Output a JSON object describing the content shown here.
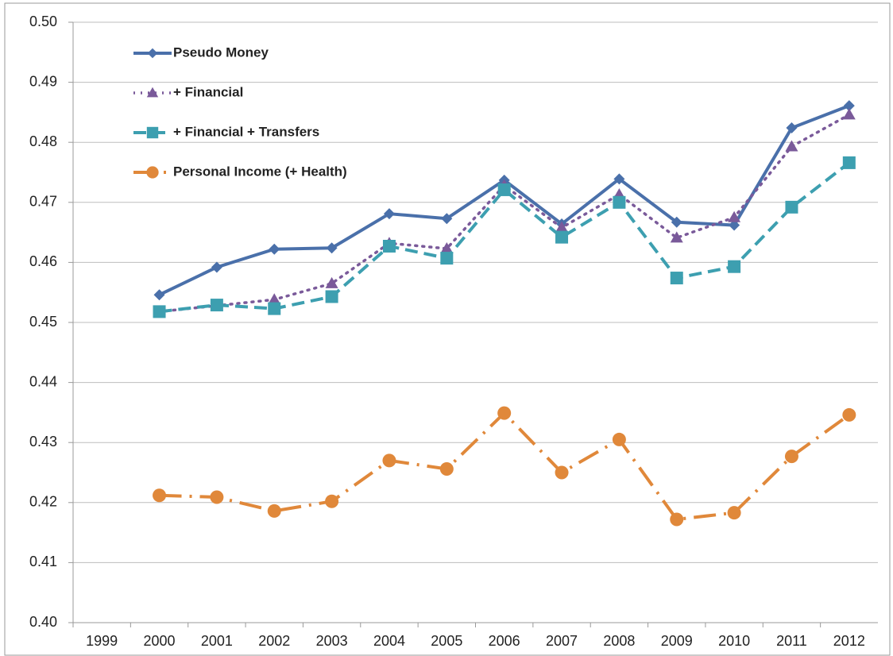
{
  "chart_data": {
    "type": "line",
    "categories": [
      "1999",
      "2000",
      "2001",
      "2002",
      "2003",
      "2004",
      "2005",
      "2006",
      "2007",
      "2008",
      "2009",
      "2010",
      "2011",
      "2012"
    ],
    "ylim": [
      0.4,
      0.5
    ],
    "yticks": [
      {
        "value": 0.4,
        "label": "0.40"
      },
      0.41,
      0.42,
      0.43,
      0.44,
      0.45,
      0.46,
      0.47,
      0.48,
      0.49,
      {
        "value": 0.5,
        "label": "0.50"
      }
    ],
    "grid": true,
    "legend": "upper-left",
    "series": [
      {
        "name": "Pseudo Money",
        "color": "#4a70aa",
        "marker": "diamond",
        "line_style": "solid",
        "values": [
          null,
          0.4546,
          0.4592,
          0.4622,
          0.4624,
          0.4681,
          0.4673,
          0.4737,
          0.4664,
          0.4739,
          0.4667,
          0.4662,
          0.4824,
          0.4861
        ]
      },
      {
        "name": "+ Financial",
        "color": "#7a5a9a",
        "marker": "triangle",
        "line_style": "dotted",
        "values": [
          null,
          0.4518,
          0.4528,
          0.4538,
          0.4565,
          0.4632,
          0.4623,
          0.4728,
          0.4658,
          0.4713,
          0.4641,
          0.4675,
          0.4793,
          0.4846
        ]
      },
      {
        "name": "+ Financial + Transfers",
        "color": "#3d9fb0",
        "marker": "square",
        "line_style": "dashed",
        "values": [
          null,
          0.4518,
          0.4529,
          0.4523,
          0.4543,
          0.4627,
          0.4607,
          0.4721,
          0.4642,
          0.47,
          0.4574,
          0.4593,
          0.4692,
          0.4766
        ]
      },
      {
        "name": "Personal Income (+ Health)",
        "color": "#e0883a",
        "marker": "circle",
        "line_style": "dashdot",
        "values": [
          null,
          0.4212,
          0.4209,
          0.4186,
          0.4202,
          0.427,
          0.4256,
          0.4349,
          0.425,
          0.4305,
          0.4172,
          0.4183,
          0.4277,
          0.4346
        ]
      }
    ]
  }
}
